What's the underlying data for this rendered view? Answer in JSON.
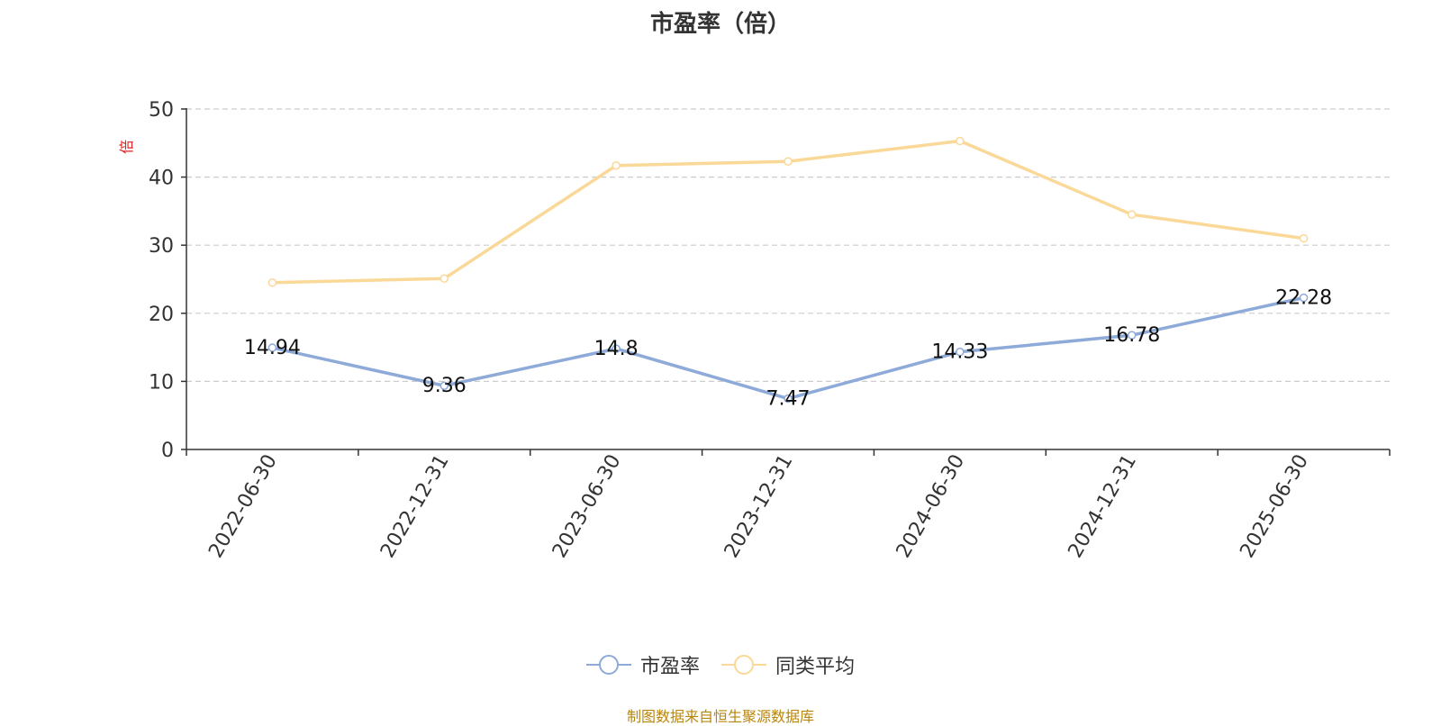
{
  "chart_data": {
    "type": "line",
    "title": "市盈率（倍）",
    "ylabel": "倍",
    "xlabel": "",
    "categories": [
      "2022-06-30",
      "2022-12-31",
      "2023-06-30",
      "2023-12-31",
      "2024-06-30",
      "2024-12-31",
      "2025-06-30"
    ],
    "ylim": [
      0,
      50
    ],
    "yticks": [
      "0",
      "10",
      "20",
      "30",
      "40",
      "50"
    ],
    "grid": true,
    "legend_position": "bottom",
    "series": [
      {
        "name": "市盈率",
        "color": "#8eaad8",
        "values": [
          14.94,
          9.36,
          14.8,
          7.47,
          14.33,
          16.78,
          22.28
        ],
        "labels": [
          "14.94",
          "9.36",
          "14.8",
          "7.47",
          "14.33",
          "16.78",
          "22.28"
        ]
      },
      {
        "name": "同类平均",
        "color": "#fad898",
        "values": [
          24.5,
          25.1,
          41.7,
          42.3,
          45.3,
          34.5,
          31.0
        ]
      }
    ]
  },
  "source": "制图数据来自恒生聚源数据库"
}
